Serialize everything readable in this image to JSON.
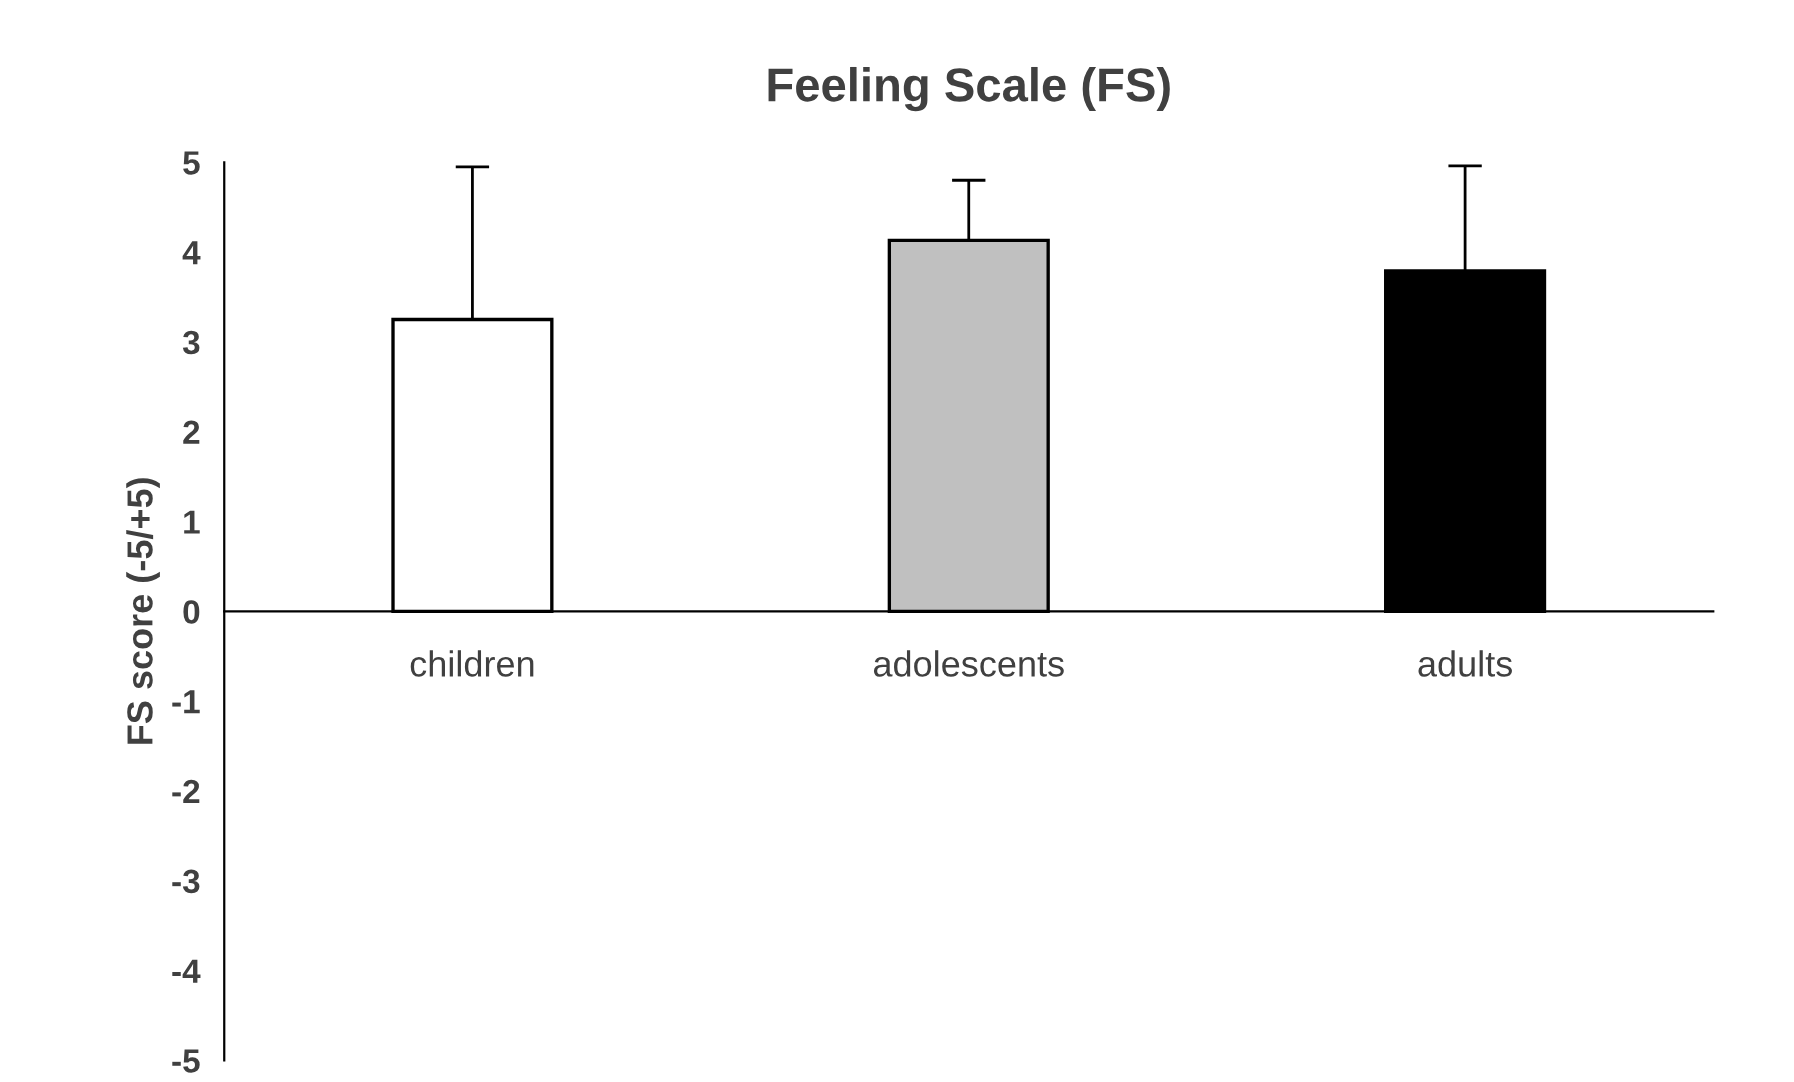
{
  "chart_data": {
    "type": "bar",
    "title": "Feeling Scale (FS)",
    "ylabel": "FS score (-5/+5)",
    "categories": [
      "children",
      "adolescents",
      "adults"
    ],
    "values": [
      3.25,
      4.13,
      3.79
    ],
    "colors": [
      "#ffffff",
      "#c0c0c0",
      "#000000"
    ],
    "errors": [
      1.7,
      0.67,
      1.17
    ],
    "ylim": [
      -5,
      5
    ],
    "yticks": [
      -5,
      -4,
      -3,
      -2,
      -1,
      0,
      1,
      2,
      3,
      4,
      5
    ],
    "grid": false,
    "legend": false
  }
}
